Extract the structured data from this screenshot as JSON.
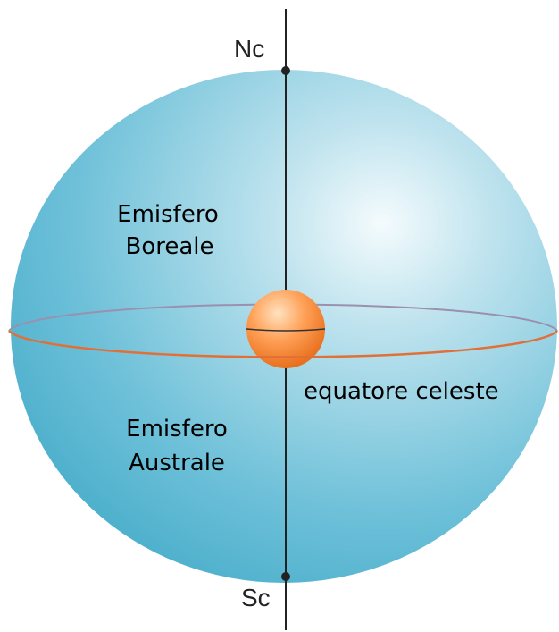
{
  "labels": {
    "north_pole": "Nc",
    "south_pole": "Sc",
    "northern_hemisphere": [
      "Emisfero",
      "Boreale"
    ],
    "southern_hemisphere": [
      "Emisfero",
      "Australe"
    ],
    "equator": "equatore celeste"
  }
}
